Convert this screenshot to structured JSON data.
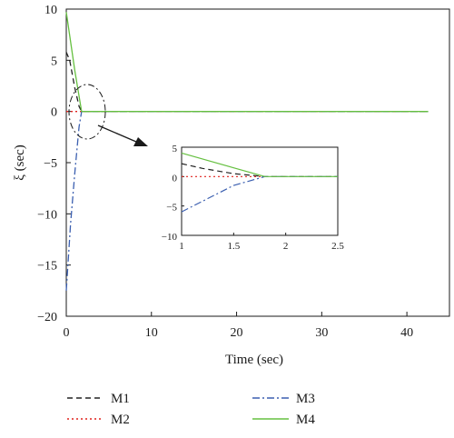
{
  "chart_data": [
    {
      "type": "line",
      "title": "",
      "xlabel": "Time (sec)",
      "ylabel": "ξ (sec)",
      "xlim": [
        0,
        45
      ],
      "ylim": [
        -20,
        10
      ],
      "xticks": [
        0,
        10,
        20,
        30,
        40
      ],
      "yticks": [
        10,
        5,
        0,
        -5,
        -10,
        -15,
        -20
      ],
      "grid": false,
      "legend_position": "bottom",
      "series": [
        {
          "name": "M1",
          "color": "#222222",
          "style": "dashed",
          "x": [
            0,
            0.4,
            1.0,
            1.5,
            1.8,
            42.5
          ],
          "y": [
            5.8,
            5.0,
            2.3,
            0.5,
            0,
            0
          ]
        },
        {
          "name": "M2",
          "color": "#e0201c",
          "style": "dotted",
          "x": [
            0,
            42.5
          ],
          "y": [
            0,
            0
          ]
        },
        {
          "name": "M3",
          "color": "#3b5fb0",
          "style": "dashdot",
          "x": [
            0,
            0.5,
            1.0,
            1.5,
            1.8,
            42.5
          ],
          "y": [
            -17.5,
            -11.0,
            -6.0,
            -1.5,
            0,
            0
          ]
        },
        {
          "name": "M4",
          "color": "#66c041",
          "style": "solid",
          "x": [
            0,
            1.0,
            1.8,
            42.5
          ],
          "y": [
            9.7,
            4.0,
            0,
            0
          ]
        }
      ]
    },
    {
      "type": "line",
      "title": "",
      "xlim": [
        1,
        2.5
      ],
      "ylim": [
        -10,
        5
      ],
      "xticks": [
        1,
        1.5,
        2,
        2.5
      ],
      "yticks": [
        5,
        0,
        -5,
        -10
      ],
      "series": [
        {
          "name": "M1",
          "x": [
            1.0,
            1.2,
            1.5,
            1.8,
            2.5
          ],
          "y": [
            2.2,
            1.4,
            0.5,
            0,
            0
          ]
        },
        {
          "name": "M2",
          "x": [
            1.0,
            1.8
          ],
          "y": [
            0,
            0
          ]
        },
        {
          "name": "M3",
          "x": [
            1.0,
            1.2,
            1.5,
            1.8,
            2.5
          ],
          "y": [
            -6.0,
            -4.2,
            -1.5,
            0,
            0
          ]
        },
        {
          "name": "M4",
          "x": [
            1.0,
            1.8,
            2.5
          ],
          "y": [
            4.0,
            0,
            0
          ]
        }
      ]
    }
  ]
}
